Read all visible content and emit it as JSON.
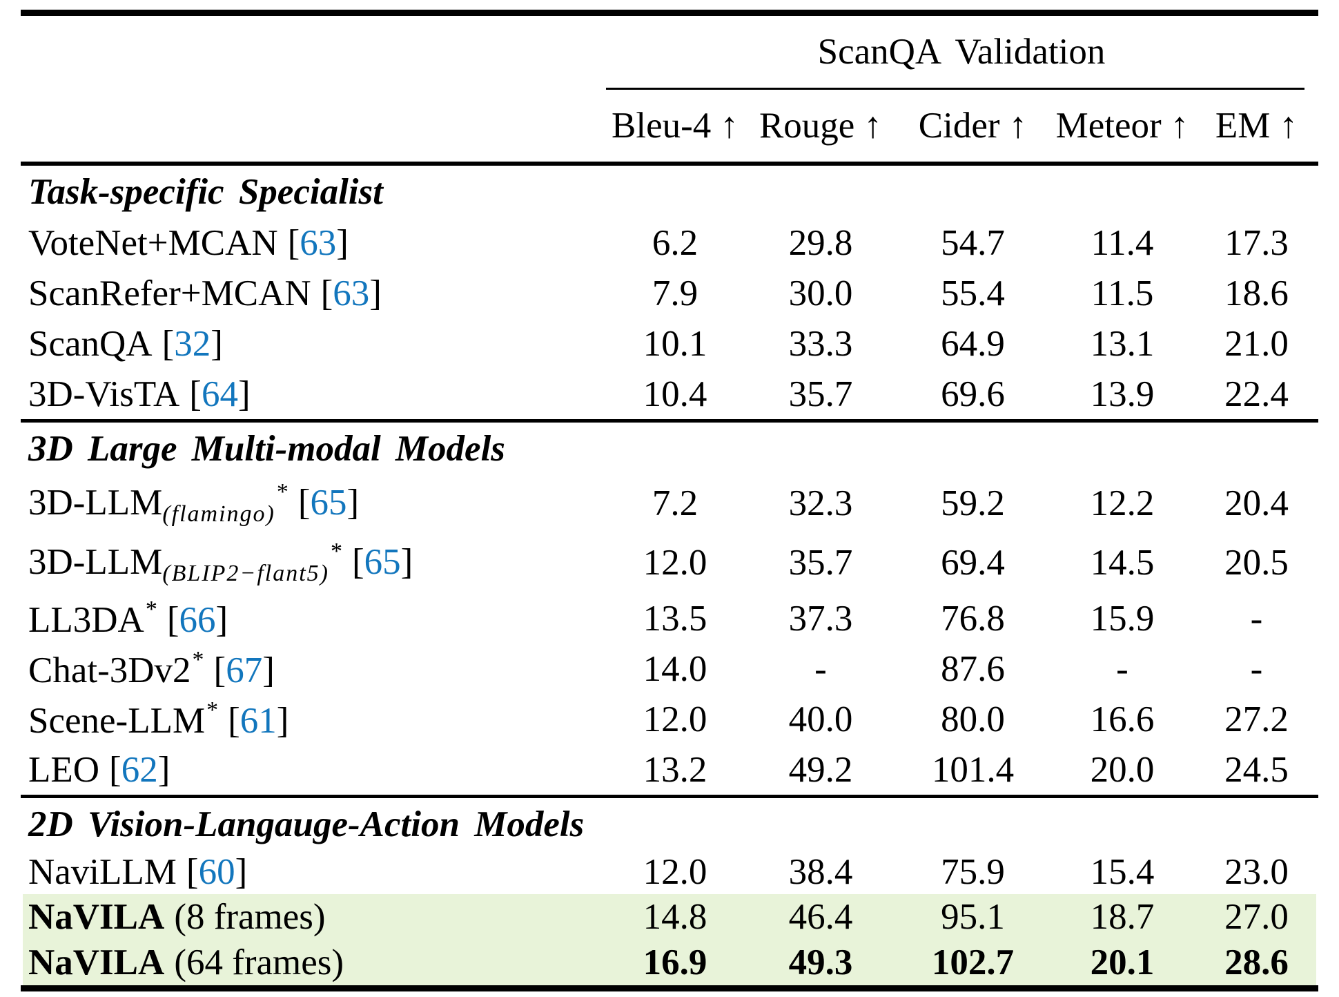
{
  "punct": {
    "open_bracket": "[",
    "close_bracket": "]"
  },
  "colors": {
    "highlight_row": "#e8f3d9",
    "citation_blue": "#1276bd"
  },
  "table": {
    "group_header": "ScanQA Validation",
    "columns": [
      "Bleu-4 ↑",
      "Rouge ↑",
      "Cider ↑",
      "Meteor ↑",
      "EM ↑"
    ],
    "sections": [
      {
        "title": "Task-specific Specialist",
        "rows": [
          {
            "name": "VoteNet+MCAN",
            "cite": "63",
            "values": [
              "6.2",
              "29.8",
              "54.7",
              "11.4",
              "17.3"
            ]
          },
          {
            "name": "ScanRefer+MCAN",
            "cite": "63",
            "values": [
              "7.9",
              "30.0",
              "55.4",
              "11.5",
              "18.6"
            ]
          },
          {
            "name": "ScanQA",
            "cite": "32",
            "values": [
              "10.1",
              "33.3",
              "64.9",
              "13.1",
              "21.0"
            ]
          },
          {
            "name": "3D-VisTA",
            "cite": "64",
            "values": [
              "10.4",
              "35.7",
              "69.6",
              "13.9",
              "22.4"
            ]
          }
        ]
      },
      {
        "title": "3D Large Multi-modal Models",
        "rows": [
          {
            "name": "3D-LLM",
            "sub": "(flamingo)",
            "sup": "*",
            "cite": "65",
            "values": [
              "7.2",
              "32.3",
              "59.2",
              "12.2",
              "20.4"
            ]
          },
          {
            "name": "3D-LLM",
            "sub": "(BLIP2−flant5)",
            "sup": "*",
            "cite": "65",
            "values": [
              "12.0",
              "35.7",
              "69.4",
              "14.5",
              "20.5"
            ]
          },
          {
            "name": "LL3DA",
            "sup": "*",
            "cite": "66",
            "values": [
              "13.5",
              "37.3",
              "76.8",
              "15.9",
              "-"
            ]
          },
          {
            "name": "Chat-3Dv2",
            "sup": "*",
            "cite": "67",
            "values": [
              "14.0",
              "-",
              "87.6",
              "-",
              "-"
            ]
          },
          {
            "name": "Scene-LLM",
            "sup": "*",
            "cite": "61",
            "values": [
              "12.0",
              "40.0",
              "80.0",
              "16.6",
              "27.2"
            ]
          },
          {
            "name": "LEO",
            "cite": "62",
            "values": [
              "13.2",
              "49.2",
              "101.4",
              "20.0",
              "24.5"
            ]
          }
        ]
      },
      {
        "title": "2D Vision-Langauge-Action Models",
        "rows": [
          {
            "name": "NaviLLM",
            "cite": "60",
            "values": [
              "12.0",
              "38.4",
              "75.9",
              "15.4",
              "23.0"
            ]
          },
          {
            "name": "NaVILA",
            "suffix": "(8 frames)",
            "values": [
              "14.8",
              "46.4",
              "95.1",
              "18.7",
              "27.0"
            ]
          },
          {
            "name": "NaVILA",
            "suffix": "(64 frames)",
            "values": [
              "16.9",
              "49.3",
              "102.7",
              "20.1",
              "28.6"
            ]
          }
        ]
      }
    ]
  }
}
